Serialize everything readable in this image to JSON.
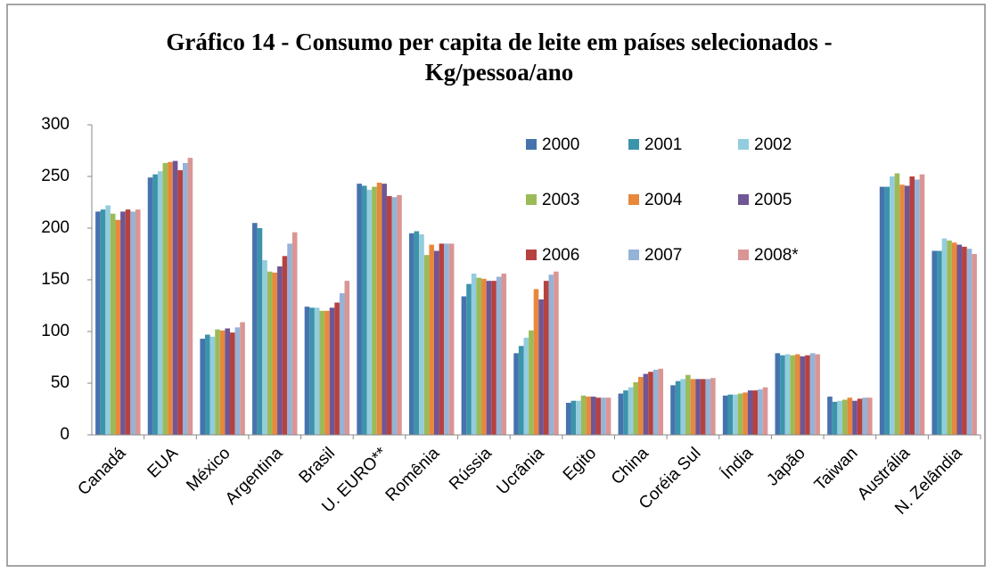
{
  "chart_data": {
    "type": "bar",
    "title": "Gráfico 14 - Consumo per capita de leite em países selecionados - Kg/pessoa/ano",
    "categories": [
      "Canadá",
      "EUA",
      "México",
      "Argentina",
      "Brasil",
      "U. EURO**",
      "Romênia",
      "Rússia",
      "Ucrânia",
      "Egito",
      "China",
      "Coréia Sul",
      "Índia",
      "Japão",
      "Taiwan",
      "Austrália",
      "N. Zelândia"
    ],
    "series": [
      {
        "name": "2000",
        "color": "#4673ad",
        "values": [
          216,
          249,
          93,
          205,
          124,
          243,
          195,
          134,
          79,
          31,
          40,
          48,
          38,
          79,
          37,
          240,
          178
        ]
      },
      {
        "name": "2001",
        "color": "#3c94ab",
        "values": [
          218,
          252,
          97,
          200,
          123,
          241,
          197,
          146,
          86,
          33,
          43,
          52,
          39,
          77,
          32,
          240,
          178
        ]
      },
      {
        "name": "2002",
        "color": "#93cddd",
        "values": [
          222,
          255,
          95,
          169,
          123,
          237,
          194,
          156,
          94,
          33,
          46,
          54,
          39,
          78,
          33,
          250,
          190
        ]
      },
      {
        "name": "2003",
        "color": "#9bbb59",
        "values": [
          214,
          263,
          102,
          158,
          120,
          240,
          174,
          152,
          101,
          38,
          51,
          58,
          40,
          77,
          34,
          253,
          188
        ]
      },
      {
        "name": "2004",
        "color": "#e8883c",
        "values": [
          208,
          264,
          101,
          157,
          120,
          244,
          184,
          151,
          141,
          37,
          56,
          54,
          41,
          78,
          36,
          242,
          186
        ]
      },
      {
        "name": "2005",
        "color": "#6f5695",
        "values": [
          216,
          265,
          103,
          163,
          123,
          243,
          178,
          149,
          131,
          37,
          59,
          54,
          43,
          76,
          33,
          241,
          184
        ]
      },
      {
        "name": "2006",
        "color": "#b6423f",
        "values": [
          218,
          256,
          99,
          173,
          128,
          231,
          185,
          149,
          149,
          36,
          61,
          54,
          43,
          77,
          35,
          250,
          182
        ]
      },
      {
        "name": "2007",
        "color": "#95b3d7",
        "values": [
          216,
          263,
          104,
          185,
          137,
          230,
          185,
          153,
          155,
          36,
          63,
          54,
          44,
          79,
          36,
          247,
          180
        ]
      },
      {
        "name": "2008*",
        "color": "#d99694",
        "values": [
          218,
          268,
          109,
          196,
          149,
          232,
          185,
          156,
          158,
          36,
          64,
          55,
          46,
          78,
          36,
          252,
          175
        ]
      }
    ],
    "ylim": [
      0,
      300
    ],
    "yticks": [
      0,
      50,
      100,
      150,
      200,
      250,
      300
    ],
    "grid": false,
    "legend": "top-right"
  }
}
